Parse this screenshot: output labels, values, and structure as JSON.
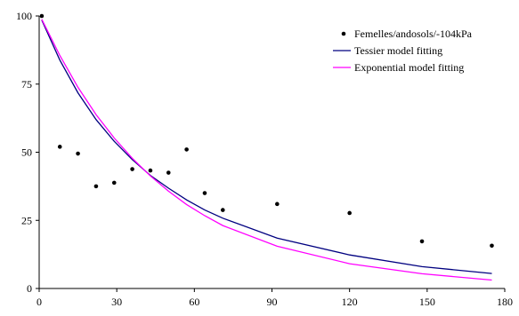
{
  "chart_data": {
    "type": "scatter",
    "title": "",
    "xlabel": "",
    "ylabel": "",
    "xlim": [
      0,
      180
    ],
    "ylim": [
      0,
      100
    ],
    "xticks": [
      0,
      30,
      60,
      90,
      120,
      150,
      180
    ],
    "yticks": [
      0,
      25,
      50,
      75,
      100
    ],
    "grid": false,
    "legend_position": "top-right",
    "series": [
      {
        "name": "Femelles/andosols/-104kPa",
        "kind": "points",
        "color": "#000000",
        "x": [
          1,
          8,
          15,
          22,
          29,
          36,
          43,
          50,
          57,
          64,
          71,
          92,
          120,
          148,
          175
        ],
        "y": [
          100,
          52,
          49.5,
          37.5,
          38.8,
          43.8,
          43.3,
          42.5,
          51,
          35,
          28.8,
          31,
          27.7,
          17.3,
          15.7
        ]
      },
      {
        "name": "Tessier model fitting",
        "kind": "line",
        "color": "#000080",
        "x": [
          1,
          8,
          15,
          22,
          29,
          36,
          43,
          50,
          57,
          64,
          71,
          92,
          120,
          148,
          175
        ],
        "y": [
          98.5,
          83.8,
          71.8,
          62,
          54,
          47.3,
          41.5,
          36.8,
          32.5,
          28.8,
          25.8,
          18.5,
          12.3,
          8,
          5.5
        ]
      },
      {
        "name": "Exponential model fitting",
        "kind": "line",
        "color": "#ff00ff",
        "x": [
          1,
          8,
          15,
          22,
          29,
          36,
          43,
          50,
          57,
          64,
          71,
          92,
          120,
          148,
          175
        ],
        "y": [
          98.8,
          85.5,
          73.8,
          63.8,
          55.2,
          47.8,
          41.3,
          35.7,
          30.8,
          26.7,
          23.1,
          15.5,
          9.1,
          5.4,
          3.1
        ]
      }
    ]
  }
}
